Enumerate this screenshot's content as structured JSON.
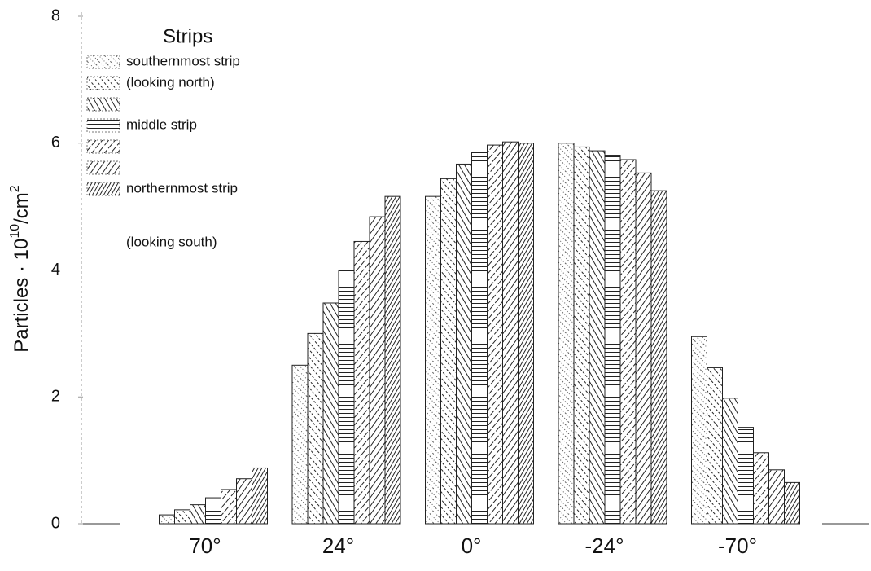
{
  "chart_data": {
    "type": "bar",
    "ylabel": {
      "text": "Particles · 10",
      "sup1": "10",
      "unit": "/cm",
      "sup2": "2"
    },
    "categories": [
      "70°",
      "24°",
      "0°",
      "-24°",
      "-70°"
    ],
    "ylim": [
      0,
      8
    ],
    "yticks": [
      0,
      2,
      4,
      6,
      8
    ],
    "legend_title": "Strips",
    "legend_note": "(looking south)",
    "series": [
      {
        "name": "southernmost strip",
        "color": "#222",
        "hatch": "dotted-forward",
        "values": [
          0.14,
          2.5,
          5.16,
          6.0,
          2.95
        ]
      },
      {
        "name": "(looking north)",
        "color": "#222",
        "hatch": "dashed-forward",
        "values": [
          0.22,
          3.0,
          5.44,
          5.94,
          2.46
        ]
      },
      {
        "name": null,
        "color": "#222",
        "hatch": "forward",
        "values": [
          0.3,
          3.48,
          5.67,
          5.88,
          1.98
        ]
      },
      {
        "name": "middle strip",
        "color": "#222",
        "hatch": "horizontal",
        "values": [
          0.41,
          4.0,
          5.85,
          5.81,
          1.52
        ]
      },
      {
        "name": null,
        "color": "#222",
        "hatch": "dashed-backward",
        "values": [
          0.54,
          4.45,
          5.97,
          5.74,
          1.12
        ]
      },
      {
        "name": null,
        "color": "#222",
        "hatch": "backward",
        "values": [
          0.71,
          4.84,
          6.02,
          5.53,
          0.85
        ]
      },
      {
        "name": "northernmost strip",
        "color": "#222",
        "hatch": "dense-backward",
        "values": [
          0.88,
          5.16,
          6.0,
          5.25,
          0.65
        ]
      }
    ]
  }
}
